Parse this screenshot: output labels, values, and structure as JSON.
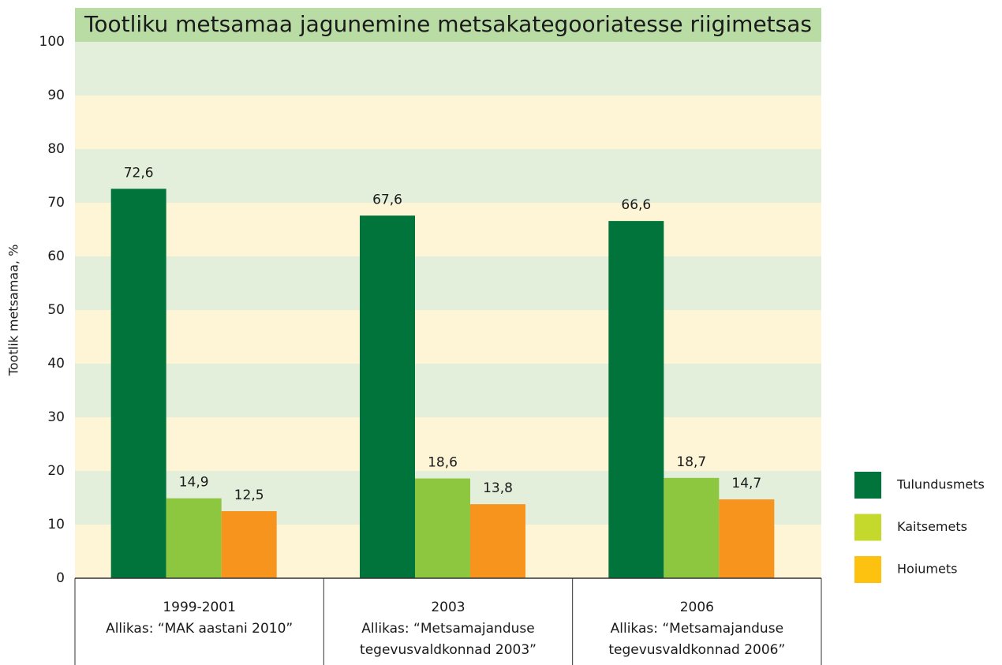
{
  "chart_data": {
    "type": "bar",
    "title": "Tootliku metsamaa jagunemine metsakategooriatesse riigimetsas",
    "y_label": "Tootlik metsamaa, %",
    "categories": [
      [
        "1999-2001",
        "Allikas: “MAK aastani 2010”"
      ],
      [
        "2003",
        "Allikas: “Metsamajanduse",
        "tegevusvaldkonnad 2003”"
      ],
      [
        "2006",
        "Allikas: “Metsamajanduse",
        "tegevusvaldkonnad 2006”"
      ]
    ],
    "series": [
      {
        "name": "Tulundusmets",
        "color": "#00743a",
        "legend_color": "#00743a",
        "values": [
          72.6,
          67.6,
          66.6
        ],
        "value_labels": [
          "72,6",
          "67,6",
          "66,6"
        ]
      },
      {
        "name": "Kaitsemets",
        "color": "#8dc63f",
        "legend_color": "#c5d92d",
        "values": [
          14.9,
          18.6,
          18.7
        ],
        "value_labels": [
          "14,9",
          "18,6",
          "18,7"
        ]
      },
      {
        "name": "Hoiumets",
        "color": "#f7941d",
        "legend_color": "#fdc20f",
        "values": [
          12.5,
          13.8,
          14.7
        ],
        "value_labels": [
          "12,5",
          "13,8",
          "14,7"
        ]
      }
    ],
    "ylim": [
      0,
      100
    ],
    "yticks": [
      0,
      10,
      20,
      30,
      40,
      50,
      60,
      70,
      80,
      90,
      100
    ],
    "band_colors": [
      "#fdf5d6",
      "#e3eedb"
    ],
    "legend": "right"
  }
}
